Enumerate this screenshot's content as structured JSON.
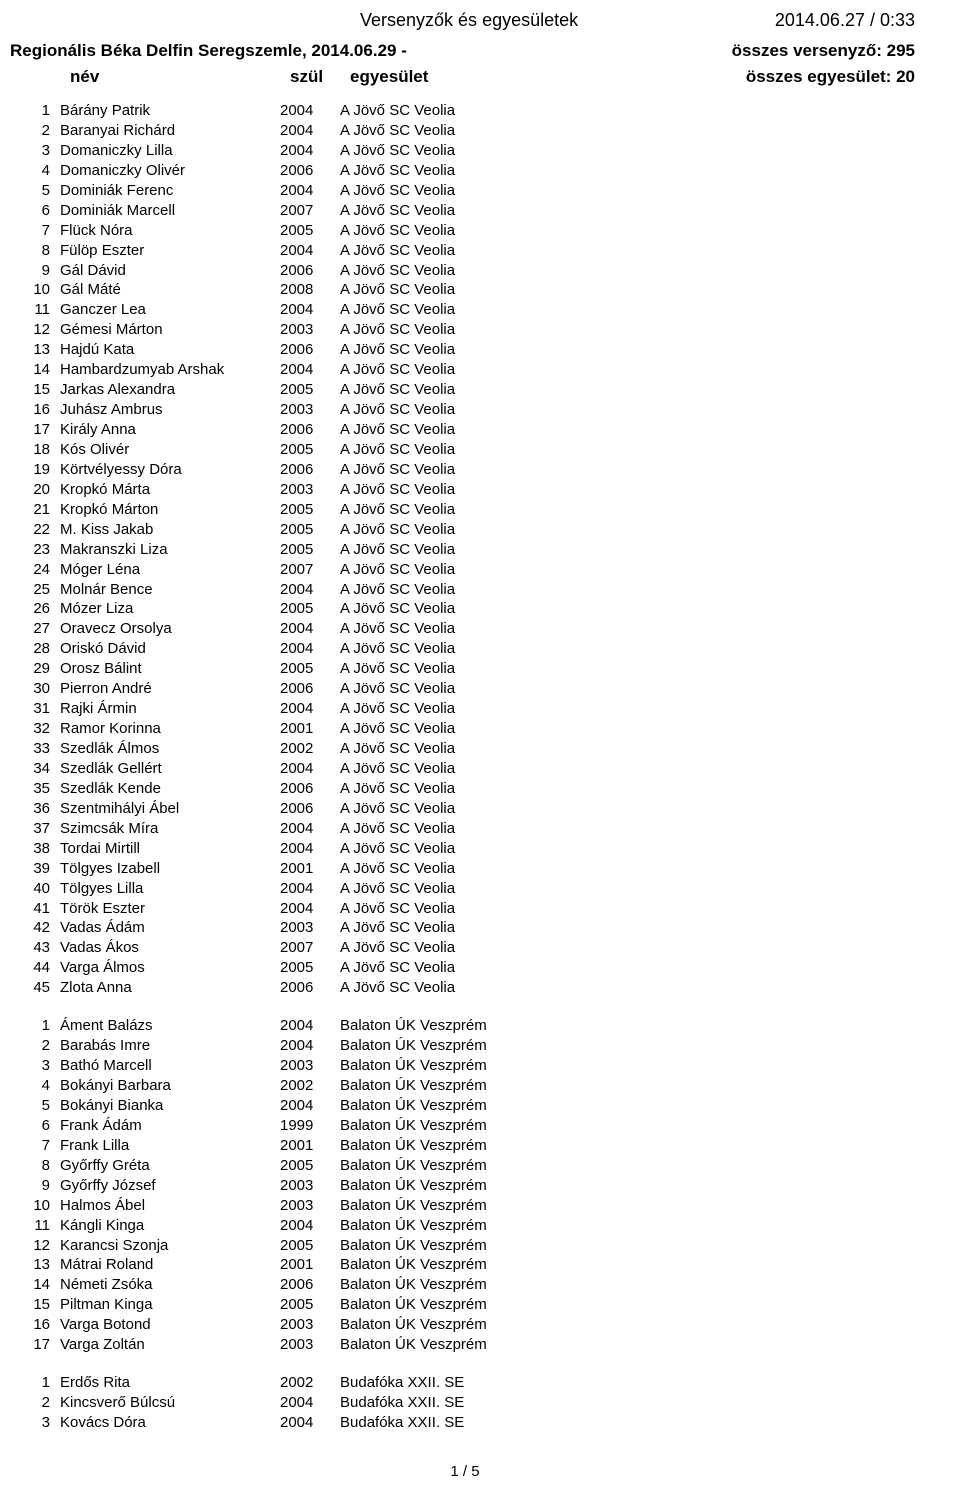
{
  "header": {
    "title": "Versenyzők és egyesületek",
    "datetime": "2014.06.27 / 0:33",
    "event": "Regionális Béka Delfin Seregszemle, 2014.06.29 -",
    "total_competitors": "összes versenyző: 295",
    "col_nev": "név",
    "col_szul": "szül",
    "col_egyesulet": "egyesület",
    "total_clubs": "összes egyesület: 20"
  },
  "groups": [
    {
      "rows": [
        {
          "n": "1",
          "name": "Bárány Patrik",
          "y": "2004",
          "club": "A Jövő SC Veolia"
        },
        {
          "n": "2",
          "name": "Baranyai Richárd",
          "y": "2004",
          "club": "A Jövő SC Veolia"
        },
        {
          "n": "3",
          "name": "Domaniczky Lilla",
          "y": "2004",
          "club": "A Jövő SC Veolia"
        },
        {
          "n": "4",
          "name": "Domaniczky Olivér",
          "y": "2006",
          "club": "A Jövő SC Veolia"
        },
        {
          "n": "5",
          "name": "Dominiák Ferenc",
          "y": "2004",
          "club": "A Jövő SC Veolia"
        },
        {
          "n": "6",
          "name": "Dominiák Marcell",
          "y": "2007",
          "club": "A Jövő SC Veolia"
        },
        {
          "n": "7",
          "name": "Flück Nóra",
          "y": "2005",
          "club": "A Jövő SC Veolia"
        },
        {
          "n": "8",
          "name": "Fülöp Eszter",
          "y": "2004",
          "club": "A Jövő SC Veolia"
        },
        {
          "n": "9",
          "name": "Gál Dávid",
          "y": "2006",
          "club": "A Jövő SC Veolia"
        },
        {
          "n": "10",
          "name": "Gál Máté",
          "y": "2008",
          "club": "A Jövő SC Veolia"
        },
        {
          "n": "11",
          "name": "Ganczer Lea",
          "y": "2004",
          "club": "A Jövő SC Veolia"
        },
        {
          "n": "12",
          "name": "Gémesi Márton",
          "y": "2003",
          "club": "A Jövő SC Veolia"
        },
        {
          "n": "13",
          "name": "Hajdú Kata",
          "y": "2006",
          "club": "A Jövő SC Veolia"
        },
        {
          "n": "14",
          "name": "Hambardzumyab Arshak",
          "y": "2004",
          "club": "A Jövő SC Veolia"
        },
        {
          "n": "15",
          "name": "Jarkas Alexandra",
          "y": "2005",
          "club": "A Jövő SC Veolia"
        },
        {
          "n": "16",
          "name": "Juhász Ambrus",
          "y": "2003",
          "club": "A Jövő SC Veolia"
        },
        {
          "n": "17",
          "name": "Király Anna",
          "y": "2006",
          "club": "A Jövő SC Veolia"
        },
        {
          "n": "18",
          "name": "Kós Olivér",
          "y": "2005",
          "club": "A Jövő SC Veolia"
        },
        {
          "n": "19",
          "name": "Körtvélyessy Dóra",
          "y": "2006",
          "club": "A Jövő SC Veolia"
        },
        {
          "n": "20",
          "name": "Kropkó Márta",
          "y": "2003",
          "club": "A Jövő SC Veolia"
        },
        {
          "n": "21",
          "name": "Kropkó Márton",
          "y": "2005",
          "club": "A Jövő SC Veolia"
        },
        {
          "n": "22",
          "name": "M. Kiss Jakab",
          "y": "2005",
          "club": "A Jövő SC Veolia"
        },
        {
          "n": "23",
          "name": "Makranszki Liza",
          "y": "2005",
          "club": "A Jövő SC Veolia"
        },
        {
          "n": "24",
          "name": "Móger Léna",
          "y": "2007",
          "club": "A Jövő SC Veolia"
        },
        {
          "n": "25",
          "name": "Molnár Bence",
          "y": "2004",
          "club": "A Jövő SC Veolia"
        },
        {
          "n": "26",
          "name": "Mózer Liza",
          "y": "2005",
          "club": "A Jövő SC Veolia"
        },
        {
          "n": "27",
          "name": "Oravecz Orsolya",
          "y": "2004",
          "club": "A Jövő SC Veolia"
        },
        {
          "n": "28",
          "name": "Oriskó Dávid",
          "y": "2004",
          "club": "A Jövő SC Veolia"
        },
        {
          "n": "29",
          "name": "Orosz Bálint",
          "y": "2005",
          "club": "A Jövő SC Veolia"
        },
        {
          "n": "30",
          "name": "Pierron André",
          "y": "2006",
          "club": "A Jövő SC Veolia"
        },
        {
          "n": "31",
          "name": "Rajki Ármin",
          "y": "2004",
          "club": "A Jövő SC Veolia"
        },
        {
          "n": "32",
          "name": "Ramor Korinna",
          "y": "2001",
          "club": "A Jövő SC Veolia"
        },
        {
          "n": "33",
          "name": "Szedlák Álmos",
          "y": "2002",
          "club": "A Jövő SC Veolia"
        },
        {
          "n": "34",
          "name": "Szedlák Gellért",
          "y": "2004",
          "club": "A Jövő SC Veolia"
        },
        {
          "n": "35",
          "name": "Szedlák Kende",
          "y": "2006",
          "club": "A Jövő SC Veolia"
        },
        {
          "n": "36",
          "name": "Szentmihályi Ábel",
          "y": "2006",
          "club": "A Jövő SC Veolia"
        },
        {
          "n": "37",
          "name": "Szimcsák Míra",
          "y": "2004",
          "club": "A Jövő SC Veolia"
        },
        {
          "n": "38",
          "name": "Tordai Mirtill",
          "y": "2004",
          "club": "A Jövő SC Veolia"
        },
        {
          "n": "39",
          "name": "Tölgyes Izabell",
          "y": "2001",
          "club": "A Jövő SC Veolia"
        },
        {
          "n": "40",
          "name": "Tölgyes Lilla",
          "y": "2004",
          "club": "A Jövő SC Veolia"
        },
        {
          "n": "41",
          "name": "Török Eszter",
          "y": "2004",
          "club": "A Jövő SC Veolia"
        },
        {
          "n": "42",
          "name": "Vadas Ádám",
          "y": "2003",
          "club": "A Jövő SC Veolia"
        },
        {
          "n": "43",
          "name": "Vadas Ákos",
          "y": "2007",
          "club": "A Jövő SC Veolia"
        },
        {
          "n": "44",
          "name": "Varga Álmos",
          "y": "2005",
          "club": "A Jövő SC Veolia"
        },
        {
          "n": "45",
          "name": "Zlota Anna",
          "y": "2006",
          "club": "A Jövő SC Veolia"
        }
      ]
    },
    {
      "rows": [
        {
          "n": "1",
          "name": "Áment Balázs",
          "y": "2004",
          "club": "Balaton ÚK Veszprém"
        },
        {
          "n": "2",
          "name": "Barabás Imre",
          "y": "2004",
          "club": "Balaton ÚK Veszprém"
        },
        {
          "n": "3",
          "name": "Bathó Marcell",
          "y": "2003",
          "club": "Balaton ÚK Veszprém"
        },
        {
          "n": "4",
          "name": "Bokányi Barbara",
          "y": "2002",
          "club": "Balaton ÚK Veszprém"
        },
        {
          "n": "5",
          "name": "Bokányi Bianka",
          "y": "2004",
          "club": "Balaton ÚK Veszprém"
        },
        {
          "n": "6",
          "name": "Frank Ádám",
          "y": "1999",
          "club": "Balaton ÚK Veszprém"
        },
        {
          "n": "7",
          "name": "Frank Lilla",
          "y": "2001",
          "club": "Balaton ÚK Veszprém"
        },
        {
          "n": "8",
          "name": "Győrffy Gréta",
          "y": "2005",
          "club": "Balaton ÚK Veszprém"
        },
        {
          "n": "9",
          "name": "Győrffy József",
          "y": "2003",
          "club": "Balaton ÚK Veszprém"
        },
        {
          "n": "10",
          "name": "Halmos Ábel",
          "y": "2003",
          "club": "Balaton ÚK Veszprém"
        },
        {
          "n": "11",
          "name": "Kángli Kinga",
          "y": "2004",
          "club": "Balaton ÚK Veszprém"
        },
        {
          "n": "12",
          "name": "Karancsi Szonja",
          "y": "2005",
          "club": "Balaton ÚK Veszprém"
        },
        {
          "n": "13",
          "name": "Mátrai Roland",
          "y": "2001",
          "club": "Balaton ÚK Veszprém"
        },
        {
          "n": "14",
          "name": "Németi Zsóka",
          "y": "2006",
          "club": "Balaton ÚK Veszprém"
        },
        {
          "n": "15",
          "name": "Piltman Kinga",
          "y": "2005",
          "club": "Balaton ÚK Veszprém"
        },
        {
          "n": "16",
          "name": "Varga Botond",
          "y": "2003",
          "club": "Balaton ÚK Veszprém"
        },
        {
          "n": "17",
          "name": "Varga Zoltán",
          "y": "2003",
          "club": "Balaton ÚK Veszprém"
        }
      ]
    },
    {
      "rows": [
        {
          "n": "1",
          "name": "Erdős Rita",
          "y": "2002",
          "club": "Budafóka XXII. SE"
        },
        {
          "n": "2",
          "name": "Kincsverő Búlcsú",
          "y": "2004",
          "club": "Budafóka XXII. SE"
        },
        {
          "n": "3",
          "name": "Kovács Dóra",
          "y": "2004",
          "club": "Budafóka XXII. SE"
        }
      ]
    }
  ],
  "footer": {
    "page": "1 / 5"
  }
}
